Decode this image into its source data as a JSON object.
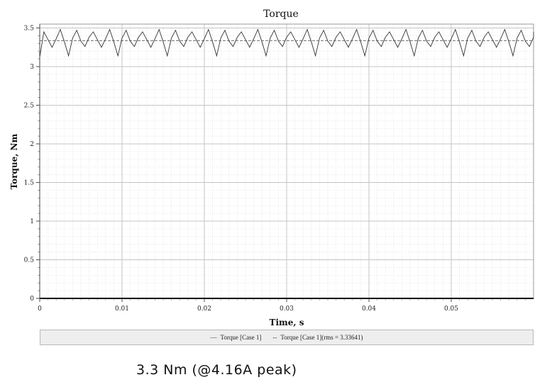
{
  "chart_data": {
    "type": "line",
    "title": "Torque",
    "xlabel": "Time, s",
    "ylabel": "Torque, Nm",
    "xlim": [
      0,
      0.06
    ],
    "ylim": [
      0,
      3.55
    ],
    "xticks": [
      "0",
      "0.01",
      "0.02",
      "0.03",
      "0.04",
      "0.05"
    ],
    "yticks": [
      "0",
      "0.5",
      "1",
      "1.5",
      "2",
      "2.5",
      "3",
      "3.5"
    ],
    "grid": true,
    "legend_position": "bottom",
    "series": [
      {
        "name": "Torque [Case 1]",
        "style": "solid",
        "color": "#333333",
        "ripple": {
          "mean": 3.34,
          "max": 3.48,
          "min": 3.12,
          "period": 0.002
        },
        "x": [
          0,
          0.0005,
          0.001,
          0.0015,
          0.002,
          0.0025,
          0.003,
          0.0035,
          0.004,
          0.0045,
          0.005,
          0.0055,
          0.006
        ],
        "y": [
          3.12,
          3.45,
          3.35,
          3.25,
          3.36,
          3.48,
          3.32,
          3.14,
          3.37,
          3.47,
          3.33,
          3.26,
          3.38
        ]
      },
      {
        "name": "Torque [Case 1](rms = 3.33641)",
        "style": "dashed",
        "color": "#555555",
        "x": [
          0,
          0.06
        ],
        "y": [
          3.33641,
          3.33641
        ]
      },
      {
        "name": "",
        "style": "solid",
        "color": "#000000",
        "x": [
          0,
          0.06
        ],
        "y": [
          0,
          0
        ]
      }
    ]
  },
  "legend": {
    "item1": "Torque [Case 1]",
    "item2": "Torque [Case 1](rms = 3.33641)"
  },
  "caption": "3.3 Nm (@4.16A peak)"
}
